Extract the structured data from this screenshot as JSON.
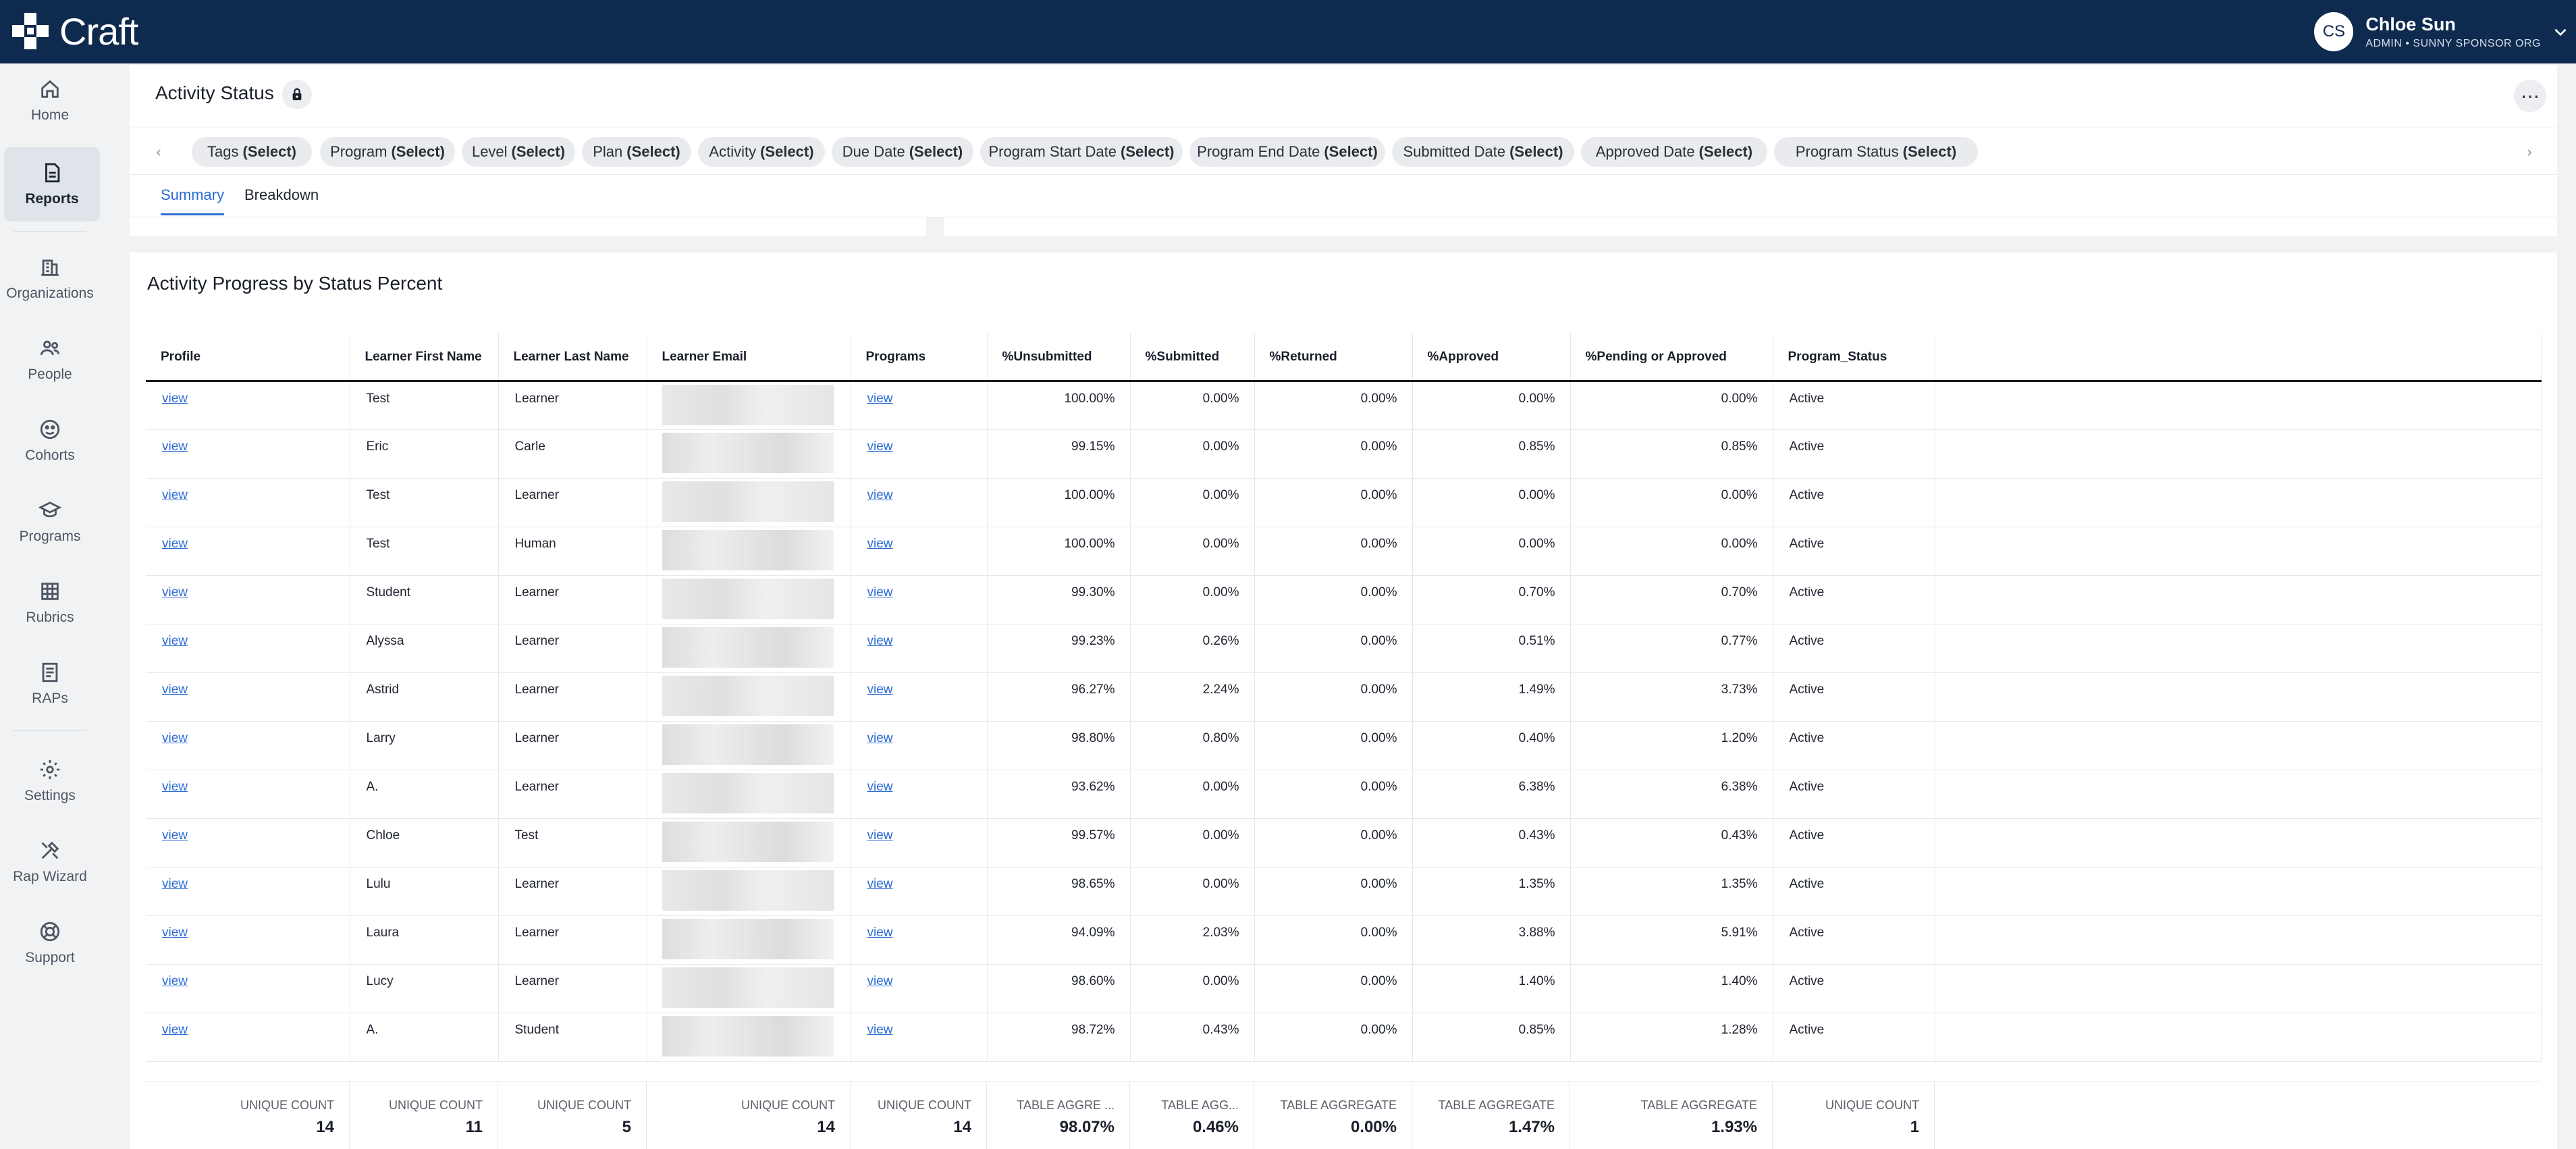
{
  "app": {
    "name": "Craft"
  },
  "user": {
    "initials": "CS",
    "name": "Chloe Sun",
    "role": "ADMIN • SUNNY SPONSOR ORG"
  },
  "sidebar": {
    "items": [
      {
        "label": "Home",
        "icon": "home-icon"
      },
      {
        "label": "Reports",
        "icon": "reports-icon",
        "active": true
      },
      {
        "label": "Organizations",
        "icon": "organizations-icon"
      },
      {
        "label": "People",
        "icon": "people-icon"
      },
      {
        "label": "Cohorts",
        "icon": "cohorts-icon"
      },
      {
        "label": "Programs",
        "icon": "programs-icon"
      },
      {
        "label": "Rubrics",
        "icon": "rubrics-icon"
      },
      {
        "label": "RAPs",
        "icon": "raps-icon"
      },
      {
        "label": "Settings",
        "icon": "settings-icon"
      },
      {
        "label": "Rap Wizard",
        "icon": "rap-wizard-icon"
      },
      {
        "label": "Support",
        "icon": "support-icon"
      }
    ]
  },
  "header": {
    "title": "Activity Status",
    "filters": [
      {
        "name": "Tags",
        "value": "(Select)"
      },
      {
        "name": "Program",
        "value": "(Select)"
      },
      {
        "name": "Level",
        "value": "(Select)"
      },
      {
        "name": "Plan",
        "value": "(Select)"
      },
      {
        "name": "Activity",
        "value": "(Select)"
      },
      {
        "name": "Due Date",
        "value": "(Select)"
      },
      {
        "name": "Program Start Date",
        "value": "(Select)"
      },
      {
        "name": "Program End Date",
        "value": "(Select)"
      },
      {
        "name": "Submitted Date",
        "value": "(Select)"
      },
      {
        "name": "Approved Date",
        "value": "(Select)"
      },
      {
        "name": "Program Status",
        "value": "(Select)"
      }
    ],
    "tabs": [
      {
        "label": "Summary",
        "active": true
      },
      {
        "label": "Breakdown",
        "active": false
      }
    ]
  },
  "report": {
    "title": "Activity Progress by Status Percent",
    "columns": [
      "Profile",
      "Learner First Name",
      "Learner Last Name",
      "Learner Email",
      "Programs",
      "%Unsubmitted",
      "%Submitted",
      "%Returned",
      "%Approved",
      "%Pending or Approved",
      "Program_Status"
    ],
    "rows": [
      {
        "profile": "view",
        "first": "Test",
        "last": "Learner",
        "programs": "view",
        "unsubmitted": "100.00%",
        "submitted": "0.00%",
        "returned": "0.00%",
        "approved": "0.00%",
        "pending": "0.00%",
        "status": "Active"
      },
      {
        "profile": "view",
        "first": "Eric",
        "last": "Carle",
        "programs": "view",
        "unsubmitted": "99.15%",
        "submitted": "0.00%",
        "returned": "0.00%",
        "approved": "0.85%",
        "pending": "0.85%",
        "status": "Active"
      },
      {
        "profile": "view",
        "first": "Test",
        "last": "Learner",
        "programs": "view",
        "unsubmitted": "100.00%",
        "submitted": "0.00%",
        "returned": "0.00%",
        "approved": "0.00%",
        "pending": "0.00%",
        "status": "Active"
      },
      {
        "profile": "view",
        "first": "Test",
        "last": "Human",
        "programs": "view",
        "unsubmitted": "100.00%",
        "submitted": "0.00%",
        "returned": "0.00%",
        "approved": "0.00%",
        "pending": "0.00%",
        "status": "Active"
      },
      {
        "profile": "view",
        "first": "Student",
        "last": "Learner",
        "programs": "view",
        "unsubmitted": "99.30%",
        "submitted": "0.00%",
        "returned": "0.00%",
        "approved": "0.70%",
        "pending": "0.70%",
        "status": "Active"
      },
      {
        "profile": "view",
        "first": "Alyssa",
        "last": "Learner",
        "programs": "view",
        "unsubmitted": "99.23%",
        "submitted": "0.26%",
        "returned": "0.00%",
        "approved": "0.51%",
        "pending": "0.77%",
        "status": "Active"
      },
      {
        "profile": "view",
        "first": "Astrid",
        "last": "Learner",
        "programs": "view",
        "unsubmitted": "96.27%",
        "submitted": "2.24%",
        "returned": "0.00%",
        "approved": "1.49%",
        "pending": "3.73%",
        "status": "Active"
      },
      {
        "profile": "view",
        "first": "Larry",
        "last": "Learner",
        "programs": "view",
        "unsubmitted": "98.80%",
        "submitted": "0.80%",
        "returned": "0.00%",
        "approved": "0.40%",
        "pending": "1.20%",
        "status": "Active"
      },
      {
        "profile": "view",
        "first": "A.",
        "last": "Learner",
        "programs": "view",
        "unsubmitted": "93.62%",
        "submitted": "0.00%",
        "returned": "0.00%",
        "approved": "6.38%",
        "pending": "6.38%",
        "status": "Active"
      },
      {
        "profile": "view",
        "first": "Chloe",
        "last": "Test",
        "programs": "view",
        "unsubmitted": "99.57%",
        "submitted": "0.00%",
        "returned": "0.00%",
        "approved": "0.43%",
        "pending": "0.43%",
        "status": "Active"
      },
      {
        "profile": "view",
        "first": "Lulu",
        "last": "Learner",
        "programs": "view",
        "unsubmitted": "98.65%",
        "submitted": "0.00%",
        "returned": "0.00%",
        "approved": "1.35%",
        "pending": "1.35%",
        "status": "Active"
      },
      {
        "profile": "view",
        "first": "Laura",
        "last": "Learner",
        "programs": "view",
        "unsubmitted": "94.09%",
        "submitted": "2.03%",
        "returned": "0.00%",
        "approved": "3.88%",
        "pending": "5.91%",
        "status": "Active"
      },
      {
        "profile": "view",
        "first": "Lucy",
        "last": "Learner",
        "programs": "view",
        "unsubmitted": "98.60%",
        "submitted": "0.00%",
        "returned": "0.00%",
        "approved": "1.40%",
        "pending": "1.40%",
        "status": "Active"
      },
      {
        "profile": "view",
        "first": "A.",
        "last": "Student",
        "programs": "view",
        "unsubmitted": "98.72%",
        "submitted": "0.43%",
        "returned": "0.00%",
        "approved": "0.85%",
        "pending": "1.28%",
        "status": "Active"
      }
    ],
    "aggregates": [
      {
        "label": "UNIQUE COUNT",
        "value": "14"
      },
      {
        "label": "UNIQUE COUNT",
        "value": "11"
      },
      {
        "label": "UNIQUE COUNT",
        "value": "5"
      },
      {
        "label": "UNIQUE COUNT",
        "value": "14"
      },
      {
        "label": "UNIQUE COUNT",
        "value": "14"
      },
      {
        "label": "TABLE AGGRE ...",
        "value": "98.07%"
      },
      {
        "label": "TABLE AGG...",
        "value": "0.46%"
      },
      {
        "label": "TABLE AGGREGATE",
        "value": "0.00%"
      },
      {
        "label": "TABLE AGGREGATE",
        "value": "1.47%"
      },
      {
        "label": "TABLE AGGREGATE",
        "value": "1.93%"
      },
      {
        "label": "UNIQUE COUNT",
        "value": "1"
      }
    ]
  }
}
